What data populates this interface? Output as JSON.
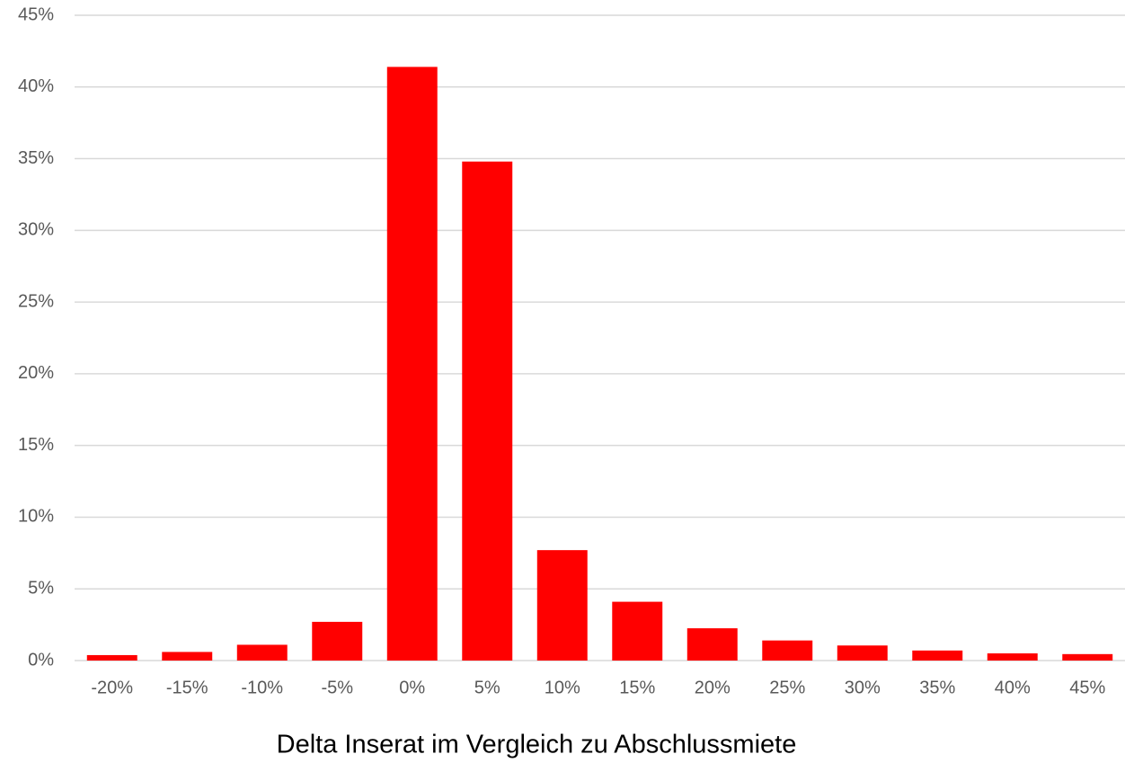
{
  "chart_data": {
    "type": "bar",
    "x_label": "Delta Inserat im Vergleich zu Abschlussmiete",
    "categories": [
      "-20%",
      "-15%",
      "-10%",
      "-5%",
      "0%",
      "5%",
      "10%",
      "15%",
      "20%",
      "25%",
      "30%",
      "35%",
      "40%",
      "45%"
    ],
    "values": [
      0.38,
      0.6,
      1.1,
      2.7,
      41.4,
      34.8,
      7.7,
      4.1,
      2.25,
      1.4,
      1.05,
      0.7,
      0.5,
      0.45
    ],
    "color": "#ff0000",
    "ylim": [
      0,
      45
    ],
    "yticks": [
      {
        "value": 0,
        "label": "0%"
      },
      {
        "value": 5,
        "label": "5%"
      },
      {
        "value": 10,
        "label": "10%"
      },
      {
        "value": 15,
        "label": "15%"
      },
      {
        "value": 20,
        "label": "20%"
      },
      {
        "value": 25,
        "label": "25%"
      },
      {
        "value": 30,
        "label": "30%"
      },
      {
        "value": 35,
        "label": "35%"
      },
      {
        "value": 40,
        "label": "40%"
      },
      {
        "value": 45,
        "label": "45%"
      }
    ],
    "grid": true
  }
}
